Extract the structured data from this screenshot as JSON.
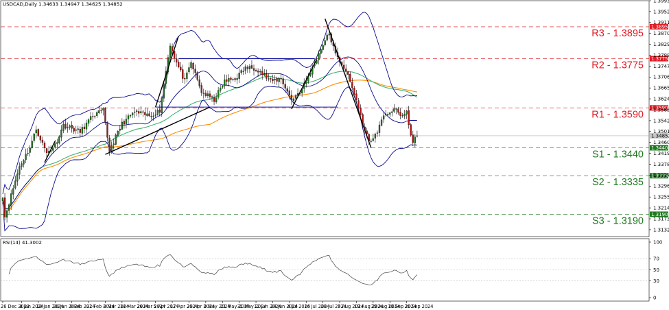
{
  "header": {
    "symbol_info": "USDCAD,Daily  1.34633 1.34947 1.34625 1.34852",
    "rsi_info": "RSI(14) 41.3002"
  },
  "chart_data": [
    {
      "type": "candlestick",
      "title": "USDCAD,Daily",
      "ylim": [
        1.3106,
        1.3993
      ],
      "y_ticks": [
        "1.39930",
        "1.39520",
        "1.39110",
        "1.38700",
        "1.38290",
        "1.37880",
        "1.37470",
        "1.37060",
        "1.36650",
        "1.36240",
        "1.35830",
        "1.35420",
        "1.35010",
        "1.34600",
        "1.34190",
        "1.33780",
        "1.33370",
        "1.32960",
        "1.32550",
        "1.32140",
        "1.31730",
        "1.31320"
      ],
      "x_ticks": [
        "26 Dec 2023",
        "8 Jan 2024",
        "18 Jan 2024",
        "30 Jan 2024",
        "9 Feb 2024",
        "21 Feb 2024",
        "4 Mar 2024",
        "14 Mar 2024",
        "26 Mar 2024",
        "5 Apr 2024",
        "17 Apr 2024",
        "29 Apr 2024",
        "9 May 2024",
        "21 May 2024",
        "31 May 2024",
        "12 Jun 2024",
        "24 Jun 2024",
        "4 Jul 2024",
        "16 Jul 2024",
        "26 Jul 2024",
        "7 Aug 2024",
        "19 Aug 2024",
        "29 Aug 2024",
        "10 Sep 2024",
        "20 Sep 2024"
      ],
      "current_price": "1.34852",
      "levels": [
        {
          "name": "R3",
          "label": "R3 - 1.3895",
          "value": 1.3895,
          "axis_tag": "1.38950",
          "color": "#e01b24"
        },
        {
          "name": "R2",
          "label": "R2 - 1.3775",
          "value": 1.3775,
          "axis_tag": "1.37750",
          "color": "#e01b24"
        },
        {
          "name": "R1",
          "label": "R1 - 1.3590",
          "value": 1.359,
          "axis_tag": "1.35900",
          "color": "#e01b24"
        },
        {
          "name": "S1",
          "label": "S1 - 1.3440",
          "value": 1.344,
          "axis_tag": "1.34400",
          "color": "#1f7a1f"
        },
        {
          "name": "S2",
          "label": "S2 - 1.3335",
          "value": 1.3335,
          "axis_tag": "1.33350",
          "color": "#1f7a1f"
        },
        {
          "name": "S3",
          "label": "S3 - 1.3190",
          "value": 1.319,
          "axis_tag": "1.31900",
          "color": "#1f7a1f"
        }
      ],
      "channel_lines": [
        {
          "name": "upper-horizontal",
          "from": [
            "22 Apr 2024",
            1.3775
          ],
          "to": [
            "22 Jul 2024",
            1.3775
          ]
        },
        {
          "name": "lower-horizontal",
          "from": [
            "5 Apr 2024",
            1.3593
          ],
          "to": [
            "6 Aug 2024",
            1.3593
          ]
        }
      ],
      "trend_lines": [
        {
          "name": "uptrend-mar-jul",
          "from": [
            "4 Mar 2024",
            1.3415
          ],
          "to": [
            "12 May 2024",
            1.3593
          ]
        },
        {
          "name": "uptrend-apr",
          "from": [
            "5 Apr 2024",
            1.3593
          ],
          "to": [
            "22 Apr 2024",
            1.386
          ]
        },
        {
          "name": "uptrend-jul",
          "from": [
            "5 Jul 2024",
            1.3586
          ],
          "to": [
            "23 Jul 2024",
            1.3772
          ]
        },
        {
          "name": "downtrend-aug",
          "from": [
            "29 Jul 2024",
            1.3925
          ],
          "to": [
            "28 Aug 2024",
            1.344
          ]
        },
        {
          "name": "uptrend-jan",
          "from": [
            "23 Jan 2024",
            1.3385
          ],
          "to": [
            "30 Jan 2024",
            1.3465
          ]
        }
      ],
      "indicators": [
        "Bollinger Bands",
        "Moving Average (50)",
        "Moving Average (100)"
      ],
      "colors": {
        "bull": "#1e7a1e",
        "bear": "#b01515",
        "bands": "#0a0a8c",
        "ma_short": "#3cb371",
        "ma_long": "#ff8c00"
      }
    },
    {
      "type": "line",
      "title": "RSI(14)",
      "ylim": [
        0,
        100
      ],
      "y_ticks": [
        "100",
        "70",
        "50",
        "30",
        "0"
      ],
      "last_value": 41.3002,
      "levels": [
        70,
        50,
        30
      ]
    }
  ]
}
